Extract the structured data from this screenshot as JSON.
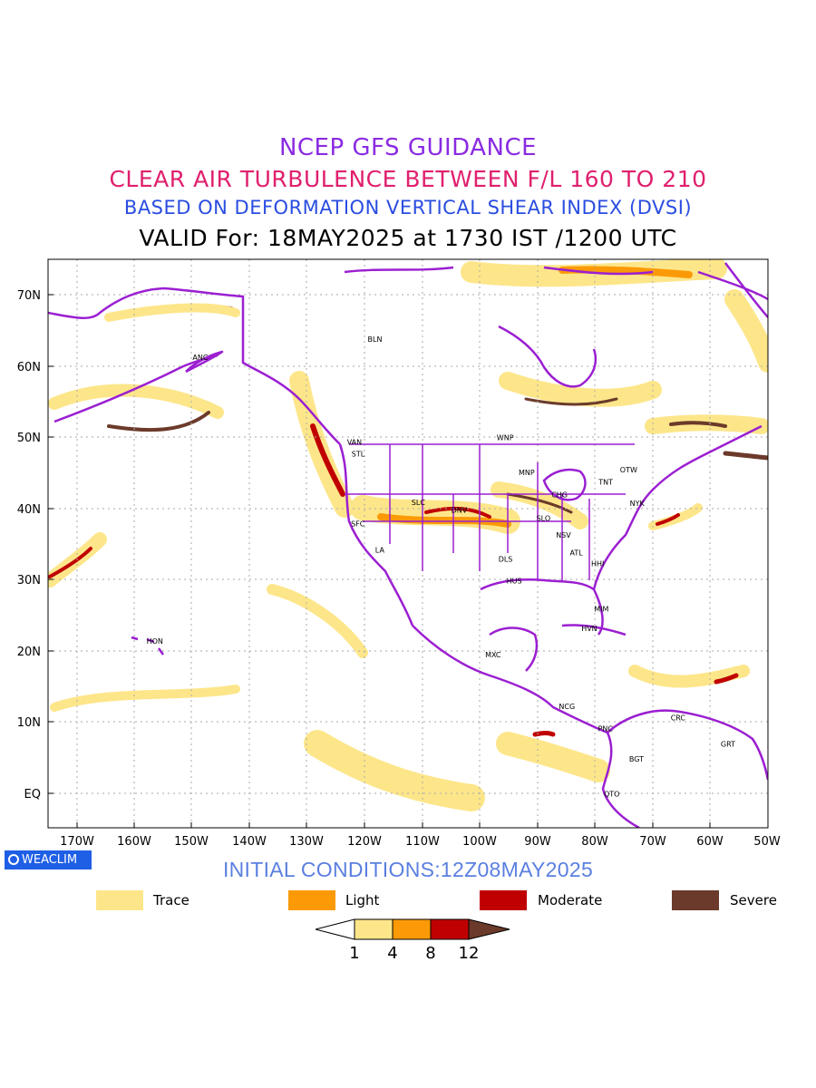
{
  "title": {
    "line1": "NCEP GFS GUIDANCE",
    "line2": "CLEAR AIR TURBULENCE BETWEEN F/L 160 TO 210",
    "line3": "BASED ON DEFORMATION VERTICAL SHEAR INDEX (DVSI)",
    "line4": "VALID For: 18MAY2025 at 1730 IST /1200 UTC"
  },
  "axes": {
    "lat_labels": [
      "70N",
      "60N",
      "50N",
      "40N",
      "30N",
      "20N",
      "10N",
      "EQ"
    ],
    "lon_labels": [
      "170W",
      "160W",
      "150W",
      "140W",
      "130W",
      "120W",
      "110W",
      "100W",
      "90W",
      "80W",
      "70W",
      "60W",
      "50W"
    ]
  },
  "cities": [
    {
      "name": "BLN",
      "lon": -119.5,
      "lat": 63.8
    },
    {
      "name": "ANC",
      "lon": -149.9,
      "lat": 61.2
    },
    {
      "name": "VAN",
      "lon": -123.1,
      "lat": 49.3
    },
    {
      "name": "STL",
      "lon": -122.3,
      "lat": 47.6
    },
    {
      "name": "WNP",
      "lon": -97.1,
      "lat": 49.9
    },
    {
      "name": "MNP",
      "lon": -93.3,
      "lat": 45.0
    },
    {
      "name": "TNT",
      "lon": -79.4,
      "lat": 43.7
    },
    {
      "name": "OTW",
      "lon": -75.7,
      "lat": 45.4
    },
    {
      "name": "CHG",
      "lon": -87.6,
      "lat": 41.9
    },
    {
      "name": "NYK",
      "lon": -74.0,
      "lat": 40.7
    },
    {
      "name": "DNV",
      "lon": -105.0,
      "lat": 39.7
    },
    {
      "name": "SLC",
      "lon": -111.9,
      "lat": 40.8
    },
    {
      "name": "SFC",
      "lon": -122.4,
      "lat": 37.8
    },
    {
      "name": "SLO",
      "lon": -90.2,
      "lat": 38.6
    },
    {
      "name": "NSV",
      "lon": -86.8,
      "lat": 36.2
    },
    {
      "name": "LA",
      "lon": -118.2,
      "lat": 34.1
    },
    {
      "name": "ATL",
      "lon": -84.4,
      "lat": 33.7
    },
    {
      "name": "DLS",
      "lon": -96.8,
      "lat": 32.8
    },
    {
      "name": "HHI",
      "lon": -80.7,
      "lat": 32.2
    },
    {
      "name": "HUS",
      "lon": -95.4,
      "lat": 29.8
    },
    {
      "name": "MIM",
      "lon": -80.2,
      "lat": 25.8
    },
    {
      "name": "HVN",
      "lon": -82.4,
      "lat": 23.1
    },
    {
      "name": "HON",
      "lon": -157.9,
      "lat": 21.3
    },
    {
      "name": "MXC",
      "lon": -99.1,
      "lat": 19.4
    },
    {
      "name": "NCG",
      "lon": -86.3,
      "lat": 12.1
    },
    {
      "name": "CRC",
      "lon": -66.9,
      "lat": 10.5
    },
    {
      "name": "PNC",
      "lon": -79.5,
      "lat": 9.0
    },
    {
      "name": "GRT",
      "lon": -58.2,
      "lat": 6.8
    },
    {
      "name": "BGT",
      "lon": -74.1,
      "lat": 4.7
    },
    {
      "name": "QTO",
      "lon": -78.5,
      "lat": -0.2
    }
  ],
  "branding": "WEACLIM",
  "initial_conditions": "INITIAL CONDITIONS:12Z08MAY2025",
  "legend": [
    {
      "label": "Trace",
      "color": "#fde68a"
    },
    {
      "label": "Light",
      "color": "#fb9a06"
    },
    {
      "label": "Moderate",
      "color": "#c00000"
    },
    {
      "label": "Severe",
      "color": "#6b3a2a"
    }
  ],
  "scale": {
    "ticks": [
      "1",
      "4",
      "8",
      "12"
    ],
    "colors": [
      "#ffffff",
      "#fde68a",
      "#fb9a06",
      "#c00000",
      "#6b3a2a"
    ]
  },
  "colors": {
    "boundary": "#9b1fd1",
    "trace": "#fde68a",
    "light": "#fb9a06",
    "moderate": "#c00000",
    "severe": "#6b3a2a"
  }
}
